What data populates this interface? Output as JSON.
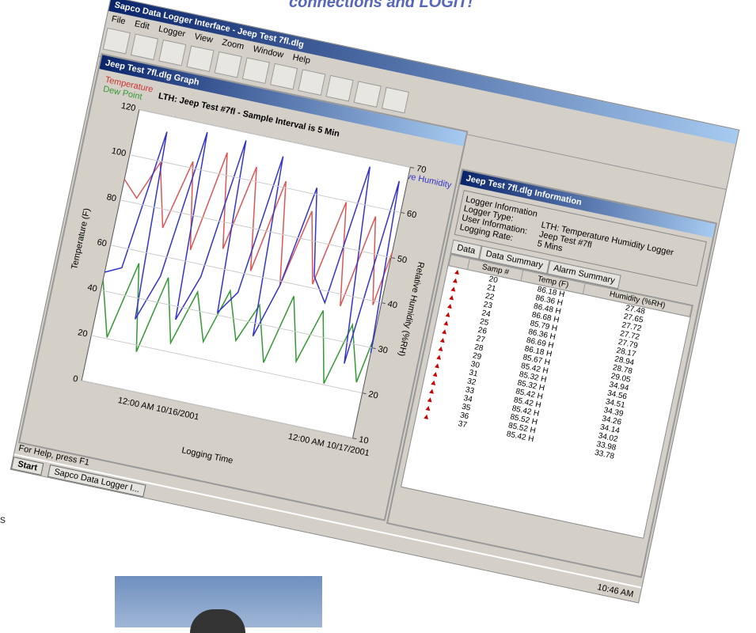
{
  "page_heading": "connections and LOGIT!",
  "side_fragment": "s",
  "app": {
    "title": "Sapco Data Logger Interface - Jeep Test 7fl.dlg",
    "menu": [
      "File",
      "Edit",
      "Logger",
      "View",
      "Zoom",
      "Window",
      "Help"
    ],
    "status": "For Help, press F1"
  },
  "graph_window": {
    "title": "Jeep Test 7fl.dlg Graph",
    "legend": [
      "Temperature",
      "Dew Point",
      "Relative Humidity"
    ],
    "chart_title": "LTH: Jeep Test #7fl - Sample Interval is 5 Min",
    "y_label": "Temperature (F)",
    "y2_label": "Relative Humidity (%RH)",
    "x_label": "Logging Time",
    "yticks": [
      0,
      20,
      40,
      60,
      80,
      100,
      120
    ],
    "y2ticks": [
      10,
      20,
      30,
      40,
      50,
      60,
      70
    ],
    "xticks": [
      "12:00 AM 10/16/2001",
      "12:00 AM 10/17/2001"
    ]
  },
  "info_window": {
    "title": "Jeep Test 7fl.dlg Information",
    "section": "Logger Information",
    "fields": [
      [
        "Logger Type:",
        "LTH: Temperature Humidity Logger"
      ],
      [
        "User Information:",
        "Jeep Test #7fl"
      ],
      [
        "Logging Rate:",
        "5 Mins"
      ]
    ],
    "tabs": [
      "Data",
      "Data Summary",
      "Alarm Summary"
    ],
    "table": {
      "header": [
        "Samp #",
        "Temp (F)",
        "Humidity (%RH)"
      ],
      "rows": [
        [
          "20",
          "86.18 H",
          "27.48"
        ],
        [
          "21",
          "86.36 H",
          "27.65"
        ],
        [
          "22",
          "86.48 H",
          "27.72"
        ],
        [
          "23",
          "86.68 H",
          "27.72"
        ],
        [
          "24",
          "85.79 H",
          "27.79"
        ],
        [
          "25",
          "86.36 H",
          "28.17"
        ],
        [
          "26",
          "86.69 H",
          "28.94"
        ],
        [
          "27",
          "86.18 H",
          "28.78"
        ],
        [
          "28",
          "85.67 H",
          "29.05"
        ],
        [
          "29",
          "85.42 H",
          "34.94"
        ],
        [
          "30",
          "85.32 H",
          "34.56"
        ],
        [
          "31",
          "85.32 H",
          "34.51"
        ],
        [
          "32",
          "85.42 H",
          "34.39"
        ],
        [
          "33",
          "85.42 H",
          "34.26"
        ],
        [
          "34",
          "85.42 H",
          "34.14"
        ],
        [
          "35",
          "85.52 H",
          "34.02"
        ],
        [
          "36",
          "85.52 H",
          "33.98"
        ],
        [
          "37",
          "85.42 H",
          "33.78"
        ]
      ]
    }
  },
  "taskbar": {
    "start": "Start",
    "task": "Sapco Data Logger I...",
    "clock": "10:46 AM"
  }
}
